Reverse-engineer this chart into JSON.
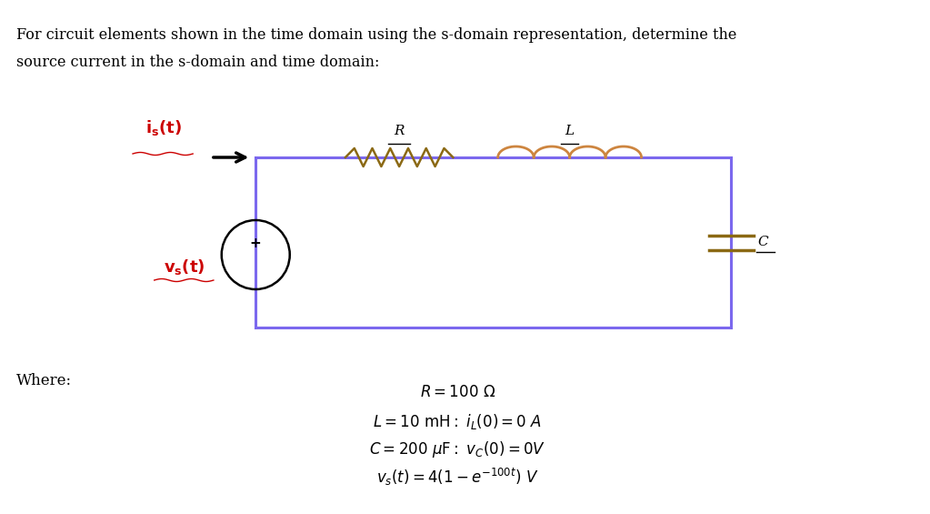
{
  "title_line1": "For circuit elements shown in the time domain using the s-domain representation, determine the",
  "title_line2": "source current in the s-domain and time domain:",
  "where_label": "Where:",
  "eq1": "R = 100 Ω",
  "eq2": "L = 10 mH: i_L(0) = 0 A",
  "eq3": "C = 200 μF: v_C(0) = 0V",
  "eq4": "v_s(t) = 4(1 – e^{-100t}) V",
  "bg_color": "#ffffff",
  "circuit_color": "#7b68ee",
  "resistor_color": "#8b6914",
  "inductor_color": "#cd853f",
  "text_color": "#000000",
  "source_label_color": "#cc0000",
  "arrow_color": "#000000"
}
